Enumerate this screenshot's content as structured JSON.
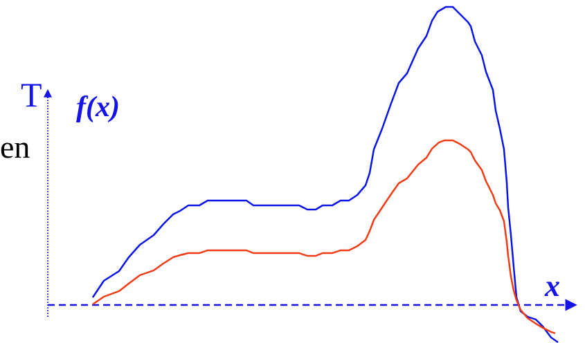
{
  "labels": {
    "t_axis": "T",
    "f_label": "f(x)",
    "x_axis": "x",
    "partial_text": "en"
  },
  "colors": {
    "axis": "#1414e6",
    "upper_curve": "#0a14e6",
    "lower_curve": "#f03c14",
    "text_black": "#000000"
  }
}
